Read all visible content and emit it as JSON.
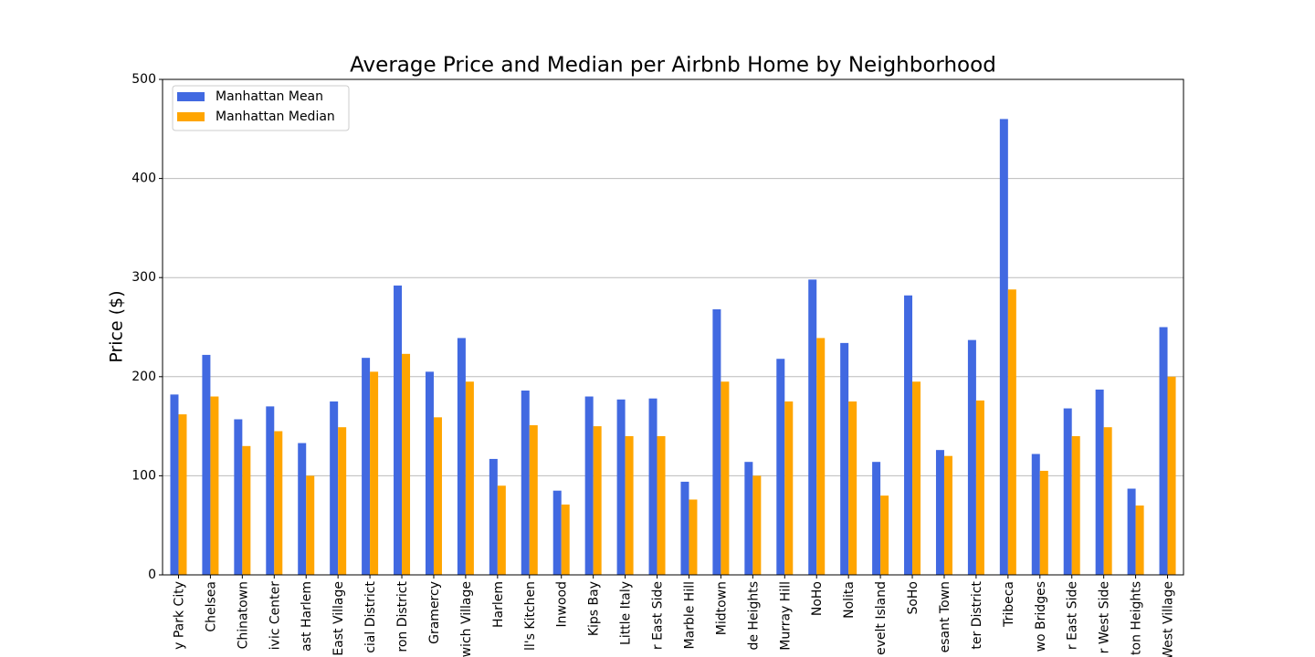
{
  "chart_data": {
    "type": "bar",
    "title": "Average Price and Median per Airbnb Home by Neighborhood",
    "y_label": "Price ($)",
    "categories": [
      "y Park City",
      "Chelsea",
      "Chinatown",
      "ivic Center",
      "ast Harlem",
      "East Village",
      "cial District",
      "ron District",
      "Gramercy",
      "wich Village",
      "Harlem",
      "ll's Kitchen",
      "Inwood",
      "Kips Bay",
      "Little Italy",
      "r East Side",
      "Marble Hill",
      "Midtown",
      "de Heights",
      "Murray Hill",
      "NoHo",
      "Nolita",
      "evelt Island",
      "SoHo",
      "esant Town",
      "ter District",
      "Tribeca",
      "wo Bridges",
      "r East Side",
      "r West Side",
      "ton Heights",
      "West Village"
    ],
    "series": [
      {
        "name": "Manhattan Mean",
        "color": "#4169e1",
        "values": [
          182,
          222,
          157,
          170,
          133,
          175,
          219,
          292,
          205,
          239,
          117,
          186,
          85,
          180,
          177,
          178,
          94,
          268,
          114,
          218,
          298,
          234,
          114,
          282,
          126,
          237,
          460,
          122,
          168,
          187,
          87,
          250
        ]
      },
      {
        "name": "Manhattan Median",
        "color": "#ffa500",
        "values": [
          162,
          180,
          130,
          145,
          100,
          149,
          205,
          223,
          159,
          195,
          90,
          151,
          71,
          150,
          140,
          140,
          76,
          195,
          100,
          175,
          239,
          175,
          80,
          195,
          120,
          176,
          288,
          105,
          140,
          149,
          70,
          200
        ]
      }
    ],
    "ylim": [
      0,
      500
    ],
    "yticks": [
      0,
      100,
      200,
      300,
      400,
      500
    ],
    "grid": true,
    "legend": "upper-left"
  }
}
